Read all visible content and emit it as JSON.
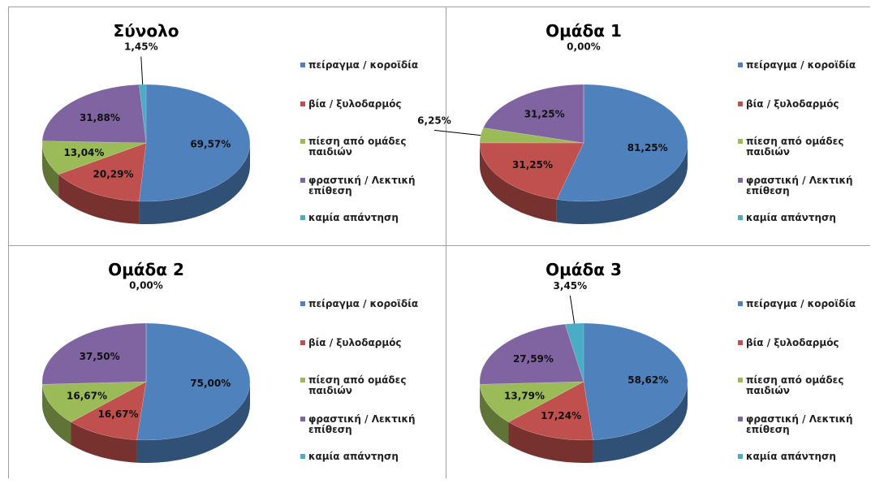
{
  "chart_data": [
    {
      "type": "pie",
      "title": "Σύνολο",
      "categories": [
        "πείραγμα / κοροϊδία",
        "βία / ξυλοδαρμός",
        "πίεση από ομάδες παιδιών",
        "φραστική / Λεκτική επίθεση",
        "καμία απάντηση"
      ],
      "values": [
        69.57,
        20.29,
        13.04,
        31.88,
        1.45
      ],
      "value_labels": [
        "69,57%",
        "20,29%",
        "13,04%",
        "31,88%",
        "1,45%"
      ],
      "colors": [
        "#4f81bd",
        "#c0504d",
        "#9bbb59",
        "#8064a2",
        "#4bacc6"
      ]
    },
    {
      "type": "pie",
      "title": "Ομάδα 1",
      "categories": [
        "πείραγμα / κοροϊδία",
        "βία / ξυλοδαρμός",
        "πίεση από ομάδες παιδιών",
        "φραστική / Λεκτική επίθεση",
        "καμία απάντηση"
      ],
      "values": [
        81.25,
        31.25,
        6.25,
        31.25,
        0
      ],
      "value_labels": [
        "81,25%",
        "31,25%",
        "6,25%",
        "31,25%",
        "0,00%"
      ],
      "colors": [
        "#4f81bd",
        "#c0504d",
        "#9bbb59",
        "#8064a2",
        "#4bacc6"
      ]
    },
    {
      "type": "pie",
      "title": "Ομάδα 2",
      "categories": [
        "πείραγμα / κοροϊδία",
        "βία / ξυλοδαρμός",
        "πίεση από ομάδες παιδιών",
        "φραστική / Λεκτική επίθεση",
        "καμία απάντηση"
      ],
      "values": [
        75.0,
        16.67,
        16.67,
        37.5,
        0
      ],
      "value_labels": [
        "75,00%",
        "16,67%",
        "16,67%",
        "37,50%",
        "0,00%"
      ],
      "colors": [
        "#4f81bd",
        "#c0504d",
        "#9bbb59",
        "#8064a2",
        "#4bacc6"
      ]
    },
    {
      "type": "pie",
      "title": "Ομάδα 3",
      "categories": [
        "πείραγμα / κοροϊδία",
        "βία / ξυλοδαρμός",
        "πίεση από ομάδες παιδιών",
        "φραστική / Λεκτική επίθεση",
        "καμία απάντηση"
      ],
      "values": [
        58.62,
        17.24,
        13.79,
        27.59,
        3.45
      ],
      "value_labels": [
        "58,62%",
        "17,24%",
        "13,79%",
        "27,59%",
        "3,45%"
      ],
      "colors": [
        "#4f81bd",
        "#c0504d",
        "#9bbb59",
        "#8064a2",
        "#4bacc6"
      ]
    }
  ]
}
